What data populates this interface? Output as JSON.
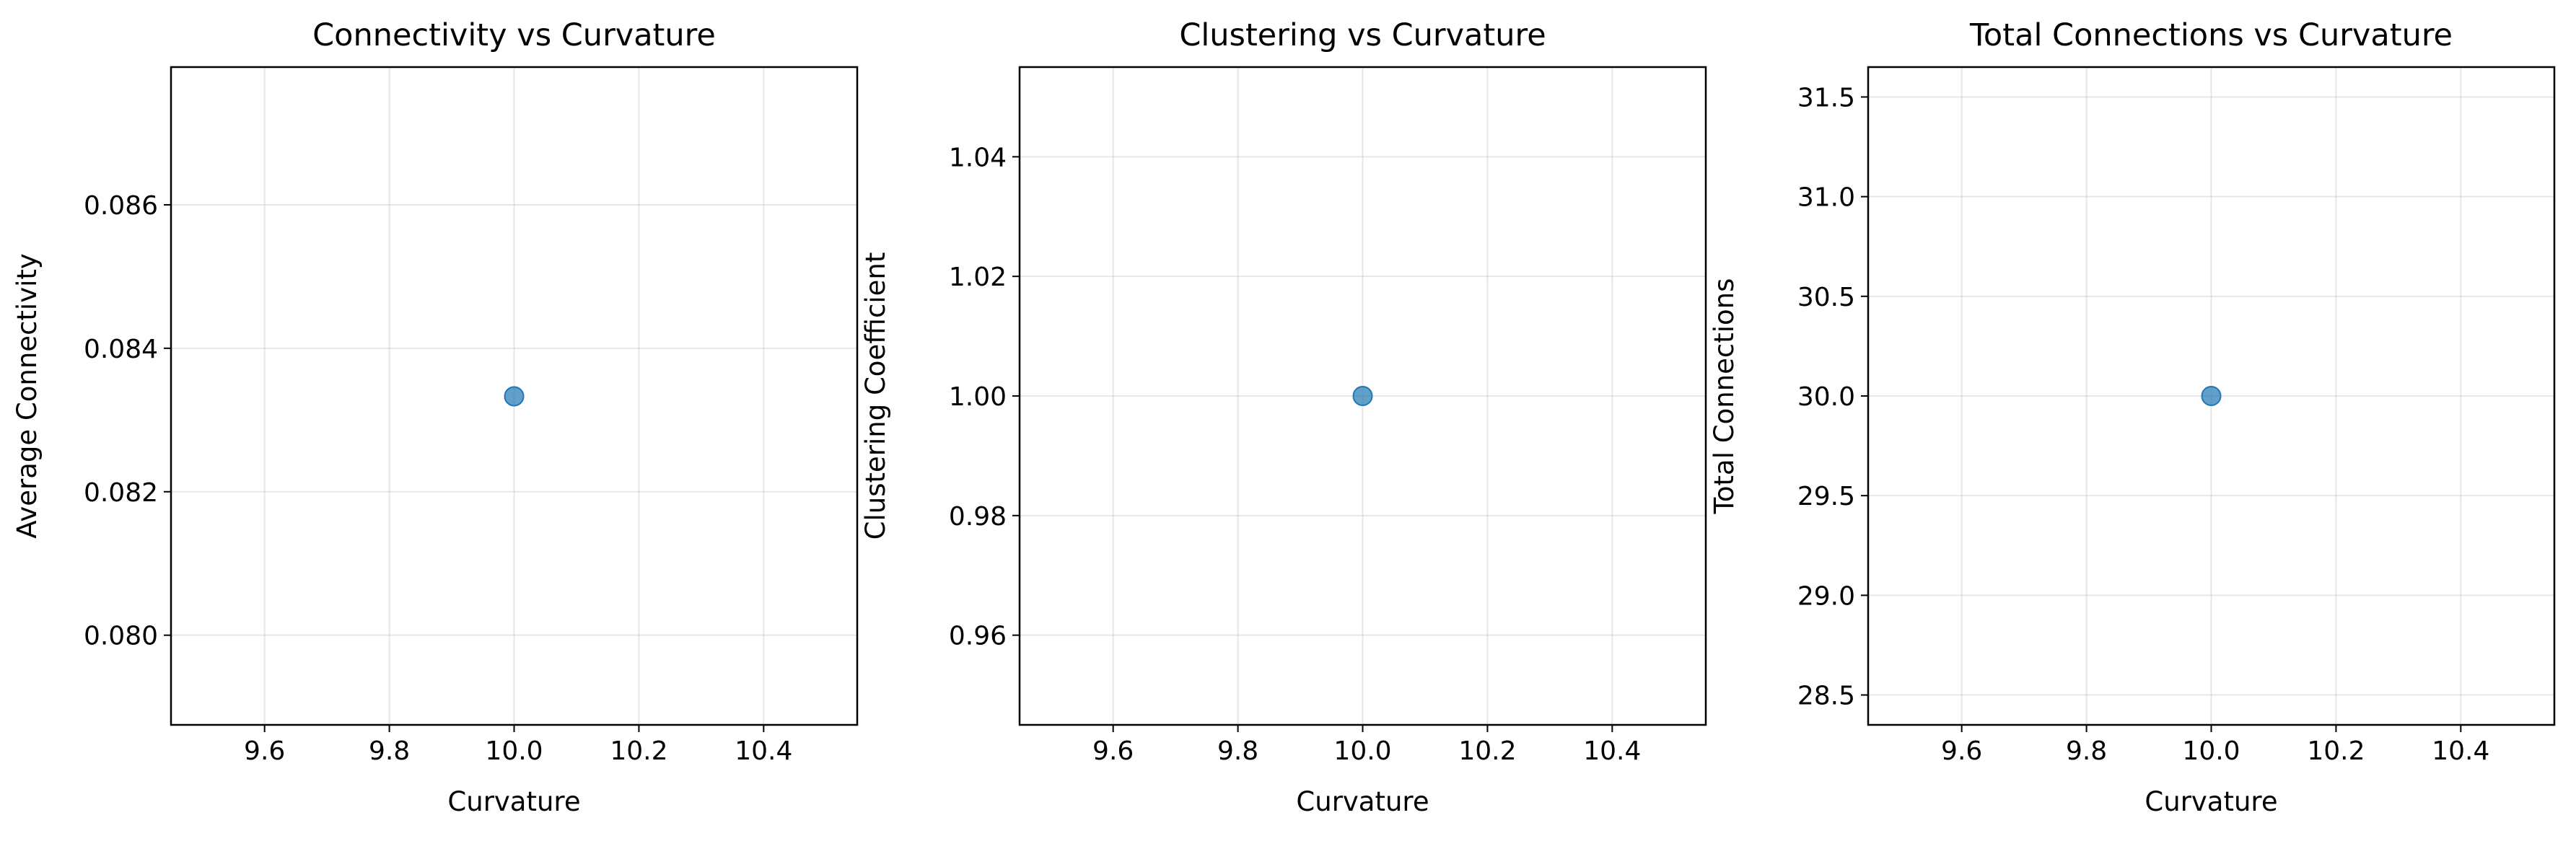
{
  "chart_data": [
    {
      "type": "scatter",
      "title": "Connectivity vs Curvature",
      "xlabel": "Curvature",
      "ylabel": "Average Connectivity",
      "xlim": [
        9.45,
        10.55
      ],
      "ylim": [
        0.07875,
        0.08792
      ],
      "xticks": [
        9.6,
        9.8,
        10.0,
        10.2,
        10.4
      ],
      "xtick_labels": [
        "9.6",
        "9.8",
        "10.0",
        "10.2",
        "10.4"
      ],
      "yticks": [
        0.08,
        0.082,
        0.084,
        0.086
      ],
      "ytick_labels": [
        "0.080",
        "0.082",
        "0.084",
        "0.086"
      ],
      "grid": true,
      "points": [
        {
          "x": 10.0,
          "y": 0.08333
        }
      ],
      "marker_color": "#1f77b4"
    },
    {
      "type": "scatter",
      "title": "Clustering vs Curvature",
      "xlabel": "Curvature",
      "ylabel": "Clustering Coefficient",
      "xlim": [
        9.45,
        10.55
      ],
      "ylim": [
        0.945,
        1.055
      ],
      "xticks": [
        9.6,
        9.8,
        10.0,
        10.2,
        10.4
      ],
      "xtick_labels": [
        "9.6",
        "9.8",
        "10.0",
        "10.2",
        "10.4"
      ],
      "yticks": [
        0.96,
        0.98,
        1.0,
        1.02,
        1.04
      ],
      "ytick_labels": [
        "0.96",
        "0.98",
        "1.00",
        "1.02",
        "1.04"
      ],
      "grid": true,
      "points": [
        {
          "x": 10.0,
          "y": 1.0
        }
      ],
      "marker_color": "#1f77b4"
    },
    {
      "type": "scatter",
      "title": "Total Connections vs Curvature",
      "xlabel": "Curvature",
      "ylabel": "Total Connections",
      "xlim": [
        9.45,
        10.55
      ],
      "ylim": [
        28.35,
        31.65
      ],
      "xticks": [
        9.6,
        9.8,
        10.0,
        10.2,
        10.4
      ],
      "xtick_labels": [
        "9.6",
        "9.8",
        "10.0",
        "10.2",
        "10.4"
      ],
      "yticks": [
        28.5,
        29.0,
        29.5,
        30.0,
        30.5,
        31.0,
        31.5
      ],
      "ytick_labels": [
        "28.5",
        "29.0",
        "29.5",
        "30.0",
        "30.5",
        "31.0",
        "31.5"
      ],
      "grid": true,
      "points": [
        {
          "x": 10.0,
          "y": 30.0
        }
      ],
      "marker_color": "#1f77b4"
    }
  ]
}
